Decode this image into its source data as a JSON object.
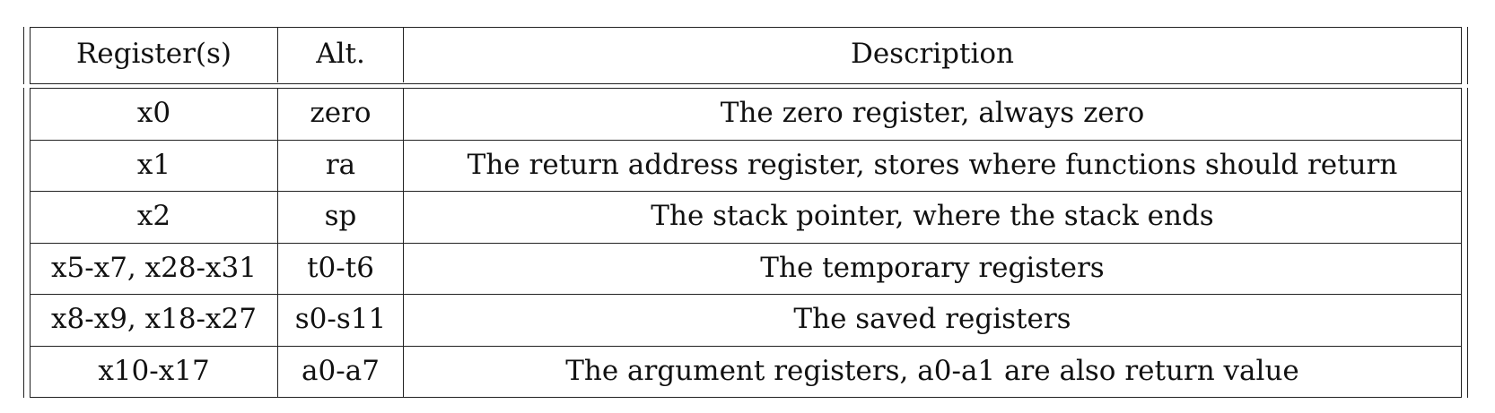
{
  "table": {
    "header": {
      "registers": "Register(s)",
      "alt": "Alt.",
      "description": "Description"
    },
    "rows": [
      {
        "registers": "x0",
        "alt": "zero",
        "description": "The zero register, always zero"
      },
      {
        "registers": "x1",
        "alt": "ra",
        "description": "The return address register, stores where functions should return"
      },
      {
        "registers": "x2",
        "alt": "sp",
        "description": "The stack pointer, where the stack ends"
      },
      {
        "registers": "x5-x7, x28-x31",
        "alt": "t0-t6",
        "description": "The temporary registers"
      },
      {
        "registers": "x8-x9, x18-x27",
        "alt": "s0-s11",
        "description": "The saved registers"
      },
      {
        "registers": "x10-x17",
        "alt": "a0-a7",
        "description": "The argument registers, a0-a1 are also return value"
      }
    ]
  }
}
